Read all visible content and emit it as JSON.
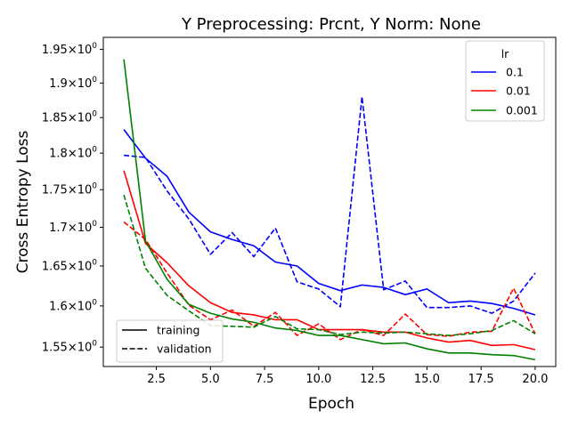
{
  "chart_data": {
    "type": "line",
    "title": "Y Preprocessing: Prcnt, Y Norm: None",
    "xlabel": "Epoch",
    "ylabel": "Cross Entropy Loss",
    "yscale": "log",
    "xlim": [
      0.05,
      20.95
    ],
    "ylim": [
      1.527,
      1.968
    ],
    "x_ticks": [
      2.5,
      5.0,
      7.5,
      10.0,
      12.5,
      15.0,
      17.5,
      20.0
    ],
    "x_tick_labels": [
      "2.5",
      "5.0",
      "7.5",
      "10.0",
      "12.5",
      "15.0",
      "17.5",
      "20.0"
    ],
    "y_ticks": [
      1.55,
      1.6,
      1.65,
      1.7,
      1.75,
      1.8,
      1.85,
      1.9,
      1.95
    ],
    "y_tick_labels": [
      {
        "base": "1.55",
        "times": "×",
        "exp_base": "10",
        "exp": "0"
      },
      {
        "base": "1.6",
        "times": "×",
        "exp_base": "10",
        "exp": "0"
      },
      {
        "base": "1.65",
        "times": "×",
        "exp_base": "10",
        "exp": "0"
      },
      {
        "base": "1.7",
        "times": "×",
        "exp_base": "10",
        "exp": "0"
      },
      {
        "base": "1.75",
        "times": "×",
        "exp_base": "10",
        "exp": "0"
      },
      {
        "base": "1.8",
        "times": "×",
        "exp_base": "10",
        "exp": "0"
      },
      {
        "base": "1.85",
        "times": "×",
        "exp_base": "10",
        "exp": "0"
      },
      {
        "base": "1.9",
        "times": "×",
        "exp_base": "10",
        "exp": "0"
      },
      {
        "base": "1.95",
        "times": "×",
        "exp_base": "10",
        "exp": "0"
      }
    ],
    "grid": false,
    "x": [
      1,
      2,
      3,
      4,
      5,
      6,
      7,
      8,
      9,
      10,
      11,
      12,
      13,
      14,
      15,
      16,
      17,
      18,
      19,
      20
    ],
    "series": [
      {
        "lr": "0.1",
        "split": "training",
        "color": "#0000ff",
        "dash": "solid",
        "values": [
          1.833,
          1.793,
          1.768,
          1.72,
          1.694,
          1.684,
          1.676,
          1.655,
          1.65,
          1.628,
          1.619,
          1.626,
          1.623,
          1.614,
          1.621,
          1.604,
          1.606,
          1.603,
          1.597,
          1.589
        ]
      },
      {
        "lr": "0.1",
        "split": "validation",
        "color": "#0000ff",
        "dash": "dashed",
        "values": [
          1.797,
          1.794,
          1.748,
          1.711,
          1.665,
          1.693,
          1.662,
          1.699,
          1.63,
          1.621,
          1.599,
          1.88,
          1.62,
          1.631,
          1.598,
          1.598,
          1.6,
          1.591,
          1.606,
          1.641
        ]
      },
      {
        "lr": "0.01",
        "split": "training",
        "color": "#ff0000",
        "dash": "solid",
        "values": [
          1.776,
          1.679,
          1.654,
          1.625,
          1.604,
          1.592,
          1.589,
          1.583,
          1.583,
          1.571,
          1.571,
          1.571,
          1.568,
          1.568,
          1.561,
          1.556,
          1.558,
          1.552,
          1.553,
          1.547
        ]
      },
      {
        "lr": "0.01",
        "split": "validation",
        "color": "#ff0000",
        "dash": "dashed",
        "values": [
          1.707,
          1.684,
          1.641,
          1.601,
          1.583,
          1.595,
          1.575,
          1.592,
          1.564,
          1.578,
          1.559,
          1.571,
          1.564,
          1.59,
          1.565,
          1.563,
          1.568,
          1.569,
          1.622,
          1.566
        ]
      },
      {
        "lr": "0.001",
        "split": "training",
        "color": "#008000",
        "dash": "solid",
        "values": [
          1.935,
          1.682,
          1.633,
          1.602,
          1.591,
          1.584,
          1.58,
          1.573,
          1.57,
          1.564,
          1.564,
          1.559,
          1.554,
          1.555,
          1.548,
          1.543,
          1.543,
          1.541,
          1.54,
          1.535
        ]
      },
      {
        "lr": "0.001",
        "split": "validation",
        "color": "#008000",
        "dash": "dashed",
        "values": [
          1.743,
          1.647,
          1.613,
          1.594,
          1.576,
          1.575,
          1.574,
          1.587,
          1.572,
          1.571,
          1.565,
          1.568,
          1.567,
          1.568,
          1.566,
          1.564,
          1.566,
          1.57,
          1.582,
          1.566
        ]
      }
    ],
    "legend_lr": {
      "title": "lr",
      "placement": "upper right",
      "entries": [
        {
          "label": "0.1",
          "color": "#0000ff"
        },
        {
          "label": "0.01",
          "color": "#ff0000"
        },
        {
          "label": "0.001",
          "color": "#008000"
        }
      ]
    },
    "legend_split": {
      "placement": "lower left",
      "entries": [
        {
          "label": "training",
          "dash": "solid"
        },
        {
          "label": "validation",
          "dash": "dashed"
        }
      ]
    }
  }
}
